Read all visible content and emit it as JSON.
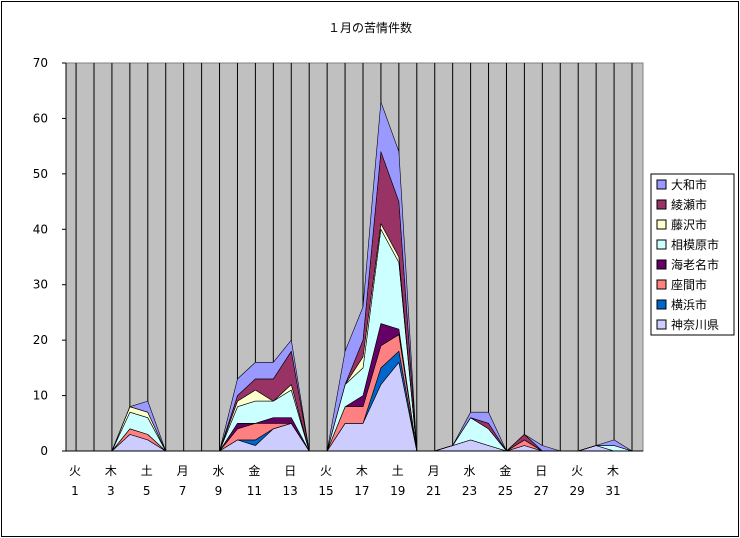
{
  "chart_data": {
    "type": "area",
    "stacked": true,
    "title": "１月の苦情件数",
    "xlabel": "",
    "ylabel": "",
    "ylim": [
      0,
      70
    ],
    "y_ticks": [
      0,
      10,
      20,
      30,
      40,
      50,
      60,
      70
    ],
    "grid": "vertical lines at each day",
    "legend_position": "right",
    "x": [
      1,
      2,
      3,
      4,
      5,
      6,
      7,
      8,
      9,
      10,
      11,
      12,
      13,
      14,
      15,
      16,
      17,
      18,
      19,
      20,
      21,
      22,
      23,
      24,
      25,
      26,
      27,
      28,
      29,
      30,
      31
    ],
    "x_tick_labels": [
      {
        "day": 1,
        "weekday": "火",
        "num": "1"
      },
      {
        "day": 3,
        "weekday": "木",
        "num": "3"
      },
      {
        "day": 5,
        "weekday": "土",
        "num": "5"
      },
      {
        "day": 7,
        "weekday": "月",
        "num": "7"
      },
      {
        "day": 9,
        "weekday": "水",
        "num": "9"
      },
      {
        "day": 11,
        "weekday": "金",
        "num": "11"
      },
      {
        "day": 13,
        "weekday": "日",
        "num": "13"
      },
      {
        "day": 15,
        "weekday": "火",
        "num": "15"
      },
      {
        "day": 17,
        "weekday": "木",
        "num": "17"
      },
      {
        "day": 19,
        "weekday": "土",
        "num": "19"
      },
      {
        "day": 21,
        "weekday": "月",
        "num": "21"
      },
      {
        "day": 23,
        "weekday": "水",
        "num": "23"
      },
      {
        "day": 25,
        "weekday": "金",
        "num": "25"
      },
      {
        "day": 27,
        "weekday": "日",
        "num": "27"
      },
      {
        "day": 29,
        "weekday": "火",
        "num": "29"
      },
      {
        "day": 31,
        "weekday": "木",
        "num": "31"
      }
    ],
    "series": [
      {
        "name": "神奈川県",
        "color": "#ccccff",
        "values": [
          0,
          0,
          3,
          2,
          0,
          0,
          0,
          0,
          2,
          1,
          4,
          5,
          0,
          0,
          5,
          5,
          12,
          16,
          0,
          0,
          1,
          2,
          1,
          0,
          1,
          0,
          0,
          0,
          1,
          0,
          0
        ]
      },
      {
        "name": "横浜市",
        "color": "#0066cc",
        "values": [
          0,
          0,
          0,
          0,
          0,
          0,
          0,
          0,
          0,
          1,
          0,
          0,
          0,
          0,
          0,
          0,
          3,
          2,
          0,
          0,
          0,
          0,
          0,
          0,
          0,
          0,
          0,
          0,
          0,
          0,
          0
        ]
      },
      {
        "name": "座間市",
        "color": "#ff8080",
        "values": [
          0,
          0,
          1,
          1,
          0,
          0,
          0,
          0,
          2,
          3,
          1,
          0,
          0,
          0,
          3,
          3,
          4,
          3,
          0,
          0,
          0,
          0,
          0,
          0,
          1,
          0,
          0,
          0,
          0,
          0,
          0
        ]
      },
      {
        "name": "海老名市",
        "color": "#660066",
        "values": [
          0,
          0,
          0,
          0,
          0,
          0,
          0,
          0,
          1,
          0,
          1,
          1,
          0,
          0,
          0,
          2,
          4,
          1,
          0,
          0,
          0,
          0,
          0,
          0,
          0,
          0,
          0,
          0,
          0,
          0,
          0
        ]
      },
      {
        "name": "相模原市",
        "color": "#ccffff",
        "values": [
          0,
          0,
          3,
          3,
          0,
          0,
          0,
          0,
          3,
          4,
          3,
          5,
          0,
          0,
          4,
          5,
          17,
          12,
          0,
          0,
          0,
          4,
          3,
          0,
          0,
          0,
          0,
          0,
          0,
          1,
          0
        ]
      },
      {
        "name": "藤沢市",
        "color": "#ffffcc",
        "values": [
          0,
          0,
          1,
          1,
          0,
          0,
          0,
          0,
          1,
          2,
          0,
          1,
          0,
          0,
          0,
          2,
          1,
          1,
          0,
          0,
          0,
          0,
          0,
          0,
          0,
          0,
          0,
          0,
          0,
          0,
          0
        ]
      },
      {
        "name": "綾瀬市",
        "color": "#993366",
        "values": [
          0,
          0,
          0,
          0,
          0,
          0,
          0,
          0,
          1,
          2,
          4,
          6,
          0,
          0,
          0,
          3,
          13,
          10,
          0,
          0,
          0,
          0,
          1,
          0,
          1,
          0,
          0,
          0,
          0,
          0,
          0
        ]
      },
      {
        "name": "大和市",
        "color": "#9999ff",
        "values": [
          0,
          0,
          0,
          2,
          0,
          0,
          0,
          0,
          3,
          3,
          3,
          2,
          0,
          0,
          6,
          6,
          9,
          9,
          0,
          0,
          0,
          1,
          2,
          0,
          0,
          1,
          0,
          0,
          0,
          1,
          0
        ]
      }
    ]
  }
}
